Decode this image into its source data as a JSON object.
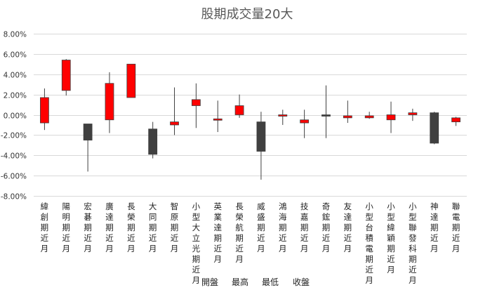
{
  "chart_data": {
    "type": "candlestick",
    "title": "股期成交量20大",
    "xlabel": "",
    "ylabel": "",
    "ylim": [
      -8.0,
      8.0
    ],
    "ytick_step": 2.0,
    "y_tick_format": "percent_2dp",
    "grid": true,
    "legend_position": "bottom",
    "legend": [
      "開盤",
      "最高",
      "最低",
      "收盤"
    ],
    "up_color": "#ff0000",
    "down_color": "#404040",
    "series_fields": [
      "open",
      "high",
      "low",
      "close"
    ],
    "categories": [
      "緯創期近月",
      "陽明期近月",
      "宏碁期近月",
      "廣達期近月",
      "長榮期近月",
      "大同期近月",
      "智原期近月",
      "小型大立光期近月",
      "英業達期近月",
      "長榮航期近月",
      "威盛期近月",
      "鴻海期近月",
      "技嘉期近月",
      "奇鋐期近月",
      "友達期近月",
      "小型台積電期近月",
      "小型緯穎期近月",
      "小型聯發科期近月",
      "神達期近月",
      "聯電期近月"
    ],
    "series": [
      {
        "name": "開盤",
        "values": [
          -0.8,
          2.4,
          -0.9,
          -0.5,
          1.7,
          -1.4,
          -1.0,
          0.9,
          -0.5,
          0.0,
          -0.7,
          -0.1,
          -0.8,
          0.0,
          -0.3,
          -0.3,
          -0.5,
          0.0,
          0.2,
          -0.7
        ]
      },
      {
        "name": "最高",
        "values": [
          2.6,
          5.5,
          -0.9,
          4.2,
          4.9,
          -0.7,
          2.7,
          3.1,
          1.4,
          2.0,
          0.3,
          0.5,
          0.5,
          2.9,
          1.4,
          0.3,
          1.3,
          0.6,
          0.3,
          -0.2
        ]
      },
      {
        "name": "最低",
        "values": [
          -1.5,
          1.9,
          -5.6,
          -1.8,
          1.7,
          -4.3,
          -2.0,
          -1.3,
          -1.7,
          -0.3,
          -6.4,
          -1.0,
          -2.3,
          -2.3,
          -0.8,
          -0.4,
          -1.8,
          -0.6,
          -2.9,
          -1.1
        ]
      },
      {
        "name": "收盤",
        "values": [
          1.7,
          5.4,
          -2.5,
          3.1,
          5.0,
          -3.9,
          -0.7,
          1.5,
          -0.4,
          0.9,
          -3.6,
          0.0,
          -0.5,
          -0.1,
          -0.1,
          -0.1,
          0.0,
          0.2,
          -2.8,
          -0.3
        ]
      }
    ]
  }
}
